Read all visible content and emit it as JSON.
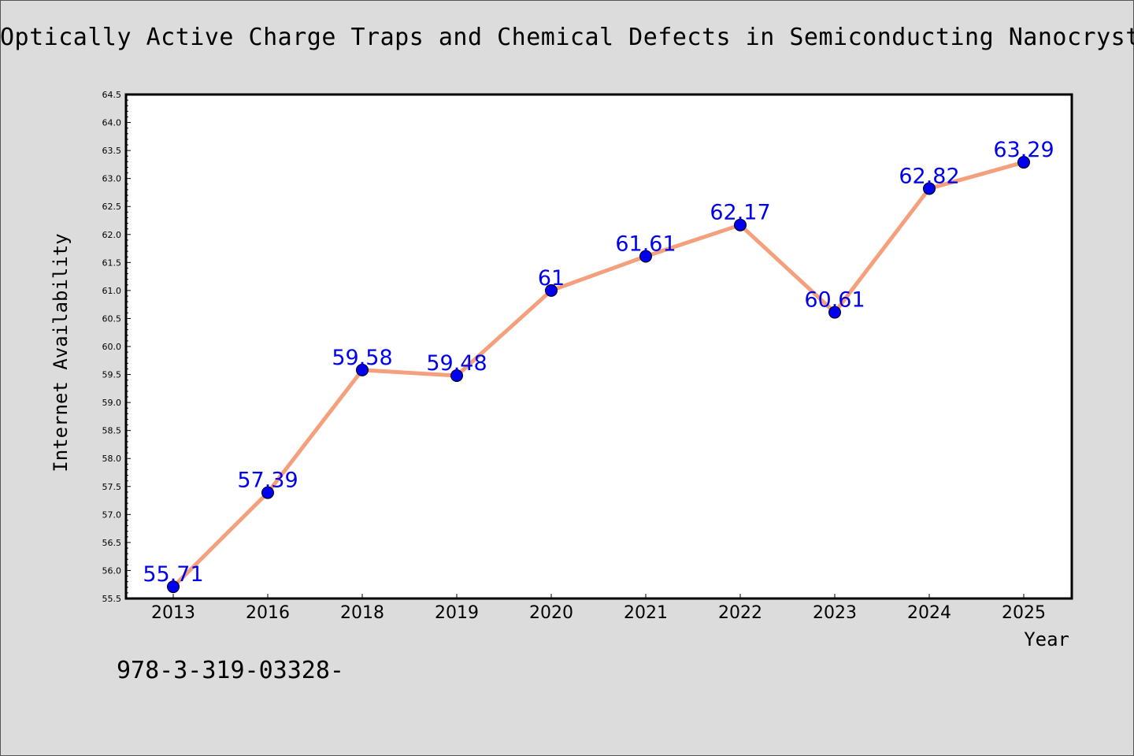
{
  "title": "Optically Active Charge Traps and Chemical Defects in Semiconducting Nanocrystal",
  "footer_text": "978-3-319-03328-",
  "chart_data": {
    "type": "line",
    "categories": [
      "2013",
      "2016",
      "2018",
      "2019",
      "2020",
      "2021",
      "2022",
      "2023",
      "2024",
      "2025"
    ],
    "series": [
      {
        "values": [
          55.71,
          57.39,
          59.58,
          59.48,
          61,
          61.61,
          62.17,
          60.61,
          62.82,
          63.29
        ]
      }
    ],
    "data_labels": [
      "55.71",
      "57.39",
      "59.58",
      "59.48",
      "61",
      "61.61",
      "62.17",
      "60.61",
      "62.82",
      "63.29"
    ],
    "xlabel": "Year",
    "ylabel": "Internet Availability",
    "ylim": [
      55.5,
      64.5
    ],
    "y_ticks": [
      "55.5",
      "56.0",
      "56.5",
      "57.0",
      "57.5",
      "58.0",
      "58.5",
      "59.0",
      "59.5",
      "60.0",
      "60.5",
      "61.0",
      "61.5",
      "62.0",
      "62.5",
      "63.0",
      "63.5",
      "64.0",
      "64.5"
    ],
    "grid": false,
    "colors": {
      "line": "#f4a07c",
      "marker": "#0000ee",
      "label": "#0000ee",
      "background": "#dcdcdc",
      "plot_bg": "#ffffff"
    }
  }
}
